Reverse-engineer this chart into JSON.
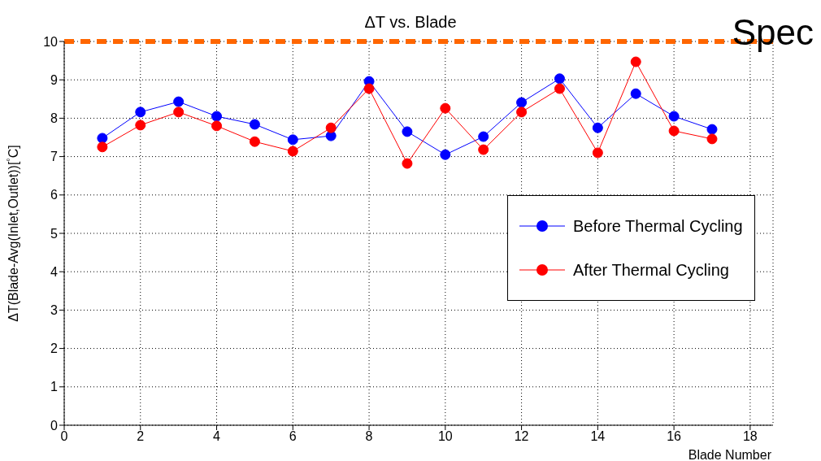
{
  "chart_data": {
    "type": "line",
    "title": "ΔT vs. Blade",
    "xlabel": "Blade Number",
    "ylabel": "ΔT(Blade-Avg(Inlet,Outlet))[$^{°}$C]",
    "x": [
      1,
      2,
      3,
      4,
      5,
      6,
      7,
      8,
      9,
      10,
      11,
      12,
      13,
      14,
      15,
      16,
      17
    ],
    "series": [
      {
        "name": "Before Thermal Cycling",
        "color": "#0000ff",
        "values": [
          7.48,
          8.16,
          8.43,
          8.05,
          7.84,
          7.44,
          7.54,
          8.96,
          7.65,
          7.05,
          7.52,
          8.41,
          9.03,
          7.75,
          8.64,
          8.05,
          7.71
        ]
      },
      {
        "name": "After Thermal Cycling",
        "color": "#ff0000",
        "values": [
          7.25,
          7.82,
          8.16,
          7.8,
          7.39,
          7.14,
          7.75,
          8.77,
          6.82,
          8.26,
          7.18,
          8.16,
          8.77,
          7.1,
          9.47,
          7.67,
          7.46
        ]
      }
    ],
    "xlim": [
      0,
      18.6
    ],
    "xticks": [
      0,
      2,
      4,
      6,
      8,
      10,
      12,
      14,
      16,
      18
    ],
    "ylim": [
      0,
      10
    ],
    "yticks": [
      0,
      1,
      2,
      3,
      4,
      5,
      6,
      7,
      8,
      9,
      10
    ],
    "ref_lines": [
      {
        "axis": "y",
        "value": 10,
        "label": "Spec",
        "color": "#ff6600",
        "line_style": "dashed"
      }
    ],
    "grid": true,
    "legend": "right",
    "marker": "circle"
  }
}
